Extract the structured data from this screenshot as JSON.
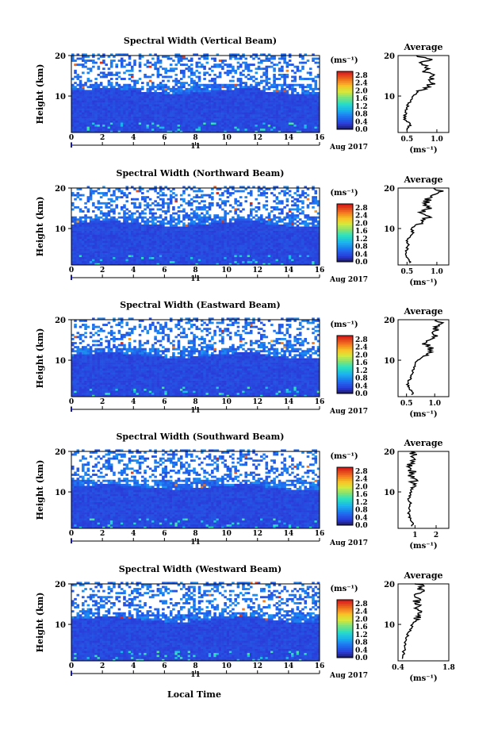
{
  "figure": {
    "xlabel": "Local Time",
    "date_label": "Aug 2017",
    "day_label": "11"
  },
  "chart_data": [
    {
      "type": "heatmap",
      "title": "Spectral Width (Vertical Beam)",
      "ylabel": "Height (km)",
      "xlim": [
        0,
        16
      ],
      "ylim": [
        1,
        20
      ],
      "x_ticks": [
        "0",
        "2",
        "4",
        "6",
        "8",
        "10",
        "12",
        "14",
        "16"
      ],
      "y_ticks": [
        "10",
        "20"
      ],
      "colorbar": {
        "label": "(ms⁻¹)",
        "ticks": [
          "0.0",
          "0.4",
          "0.8",
          "1.2",
          "1.6",
          "2.0",
          "2.4",
          "2.8"
        ],
        "range": [
          0,
          3.0
        ]
      },
      "profile": {
        "title": "Average",
        "xlabel": "(ms⁻¹)",
        "x_ticks": [
          "0.5",
          "1.0"
        ],
        "xlim": [
          0.35,
          1.2
        ],
        "heights": [
          2,
          3,
          4,
          5,
          6,
          7,
          8,
          9,
          10,
          11,
          12,
          13,
          14,
          15,
          16,
          17,
          18,
          19,
          20
        ],
        "values": [
          0.5,
          0.56,
          0.47,
          0.46,
          0.48,
          0.5,
          0.52,
          0.58,
          0.6,
          0.7,
          0.82,
          0.9,
          0.88,
          0.95,
          0.8,
          0.85,
          0.75,
          0.9,
          0.7
        ]
      }
    },
    {
      "type": "heatmap",
      "title": "Spectral Width (Northward Beam)",
      "ylabel": "Height (km)",
      "xlim": [
        0,
        16
      ],
      "ylim": [
        1,
        20
      ],
      "x_ticks": [
        "0",
        "2",
        "4",
        "6",
        "8",
        "10",
        "12",
        "14",
        "16"
      ],
      "y_ticks": [
        "10",
        "20"
      ],
      "colorbar": {
        "label": "(ms⁻¹)",
        "ticks": [
          "0.0",
          "0.4",
          "0.8",
          "1.2",
          "1.6",
          "2.0",
          "2.4",
          "2.8"
        ],
        "range": [
          0,
          3.0
        ]
      },
      "profile": {
        "title": "Average",
        "xlabel": "(ms⁻¹)",
        "x_ticks": [
          "0.5",
          "1.0"
        ],
        "xlim": [
          0.35,
          1.2
        ],
        "heights": [
          2,
          3,
          4,
          5,
          6,
          7,
          8,
          9,
          10,
          11,
          12,
          13,
          14,
          15,
          16,
          17,
          18,
          19,
          20
        ],
        "values": [
          0.55,
          0.5,
          0.48,
          0.5,
          0.52,
          0.5,
          0.55,
          0.6,
          0.58,
          0.65,
          0.8,
          0.85,
          0.75,
          0.9,
          0.8,
          0.85,
          0.9,
          1.1,
          0.95
        ]
      }
    },
    {
      "type": "heatmap",
      "title": "Spectral Width (Eastward Beam)",
      "ylabel": "Height (km)",
      "xlim": [
        0,
        16
      ],
      "ylim": [
        1,
        20
      ],
      "x_ticks": [
        "0",
        "2",
        "4",
        "6",
        "8",
        "10",
        "12",
        "14",
        "16"
      ],
      "y_ticks": [
        "10",
        "20"
      ],
      "colorbar": {
        "label": "(ms⁻¹)",
        "ticks": [
          "0.0",
          "0.4",
          "0.8",
          "1.2",
          "1.6",
          "2.0",
          "2.4",
          "2.8"
        ],
        "range": [
          0,
          3.0
        ]
      },
      "profile": {
        "title": "Average",
        "xlabel": "(ms⁻¹)",
        "x_ticks": [
          "0.5",
          "1.0"
        ],
        "xlim": [
          0.35,
          1.25
        ],
        "heights": [
          2,
          3,
          4,
          5,
          6,
          7,
          8,
          9,
          10,
          11,
          12,
          13,
          14,
          15,
          16,
          17,
          18,
          19,
          20
        ],
        "values": [
          0.6,
          0.55,
          0.52,
          0.55,
          0.58,
          0.6,
          0.62,
          0.65,
          0.7,
          0.8,
          0.9,
          0.95,
          0.85,
          0.9,
          1.0,
          0.95,
          1.05,
          1.1,
          1.0
        ]
      }
    },
    {
      "type": "heatmap",
      "title": "Spectral Width (Southward Beam)",
      "ylabel": "Height (km)",
      "xlim": [
        0,
        16
      ],
      "ylim": [
        1,
        20
      ],
      "x_ticks": [
        "0",
        "2",
        "4",
        "6",
        "8",
        "10",
        "12",
        "14",
        "16"
      ],
      "y_ticks": [
        "10",
        "20"
      ],
      "colorbar": {
        "label": "(ms⁻¹)",
        "ticks": [
          "0.0",
          "0.4",
          "0.8",
          "1.2",
          "1.6",
          "2.0",
          "2.4",
          "2.8"
        ],
        "range": [
          0,
          3.0
        ]
      },
      "profile": {
        "title": "Average",
        "xlabel": "(ms⁻¹)",
        "x_ticks": [
          "1",
          "2"
        ],
        "xlim": [
          0.2,
          2.6
        ],
        "heights": [
          2,
          3,
          4,
          5,
          6,
          7,
          8,
          9,
          10,
          11,
          12,
          13,
          14,
          15,
          16,
          17,
          18,
          19,
          20
        ],
        "values": [
          0.9,
          0.8,
          0.75,
          0.7,
          0.75,
          0.8,
          0.7,
          0.75,
          0.8,
          0.85,
          0.9,
          0.95,
          0.85,
          0.9,
          0.8,
          0.85,
          0.9,
          0.95,
          0.9
        ]
      }
    },
    {
      "type": "heatmap",
      "title": "Spectral Width (Westward Beam)",
      "ylabel": "Height (km)",
      "xlim": [
        0,
        16
      ],
      "ylim": [
        1,
        20
      ],
      "x_ticks": [
        "0",
        "2",
        "4",
        "6",
        "8",
        "10",
        "12",
        "14",
        "16"
      ],
      "y_ticks": [
        "10",
        "20"
      ],
      "colorbar": {
        "label": "(ms⁻¹)",
        "ticks": [
          "0.0",
          "0.4",
          "0.8",
          "1.2",
          "1.6",
          "2.0",
          "2.4",
          "2.8"
        ],
        "range": [
          0,
          3.0
        ]
      },
      "profile": {
        "title": "Average",
        "xlabel": "(ms⁻¹)",
        "x_ticks": [
          "0.4",
          "1.8"
        ],
        "xlim": [
          0.4,
          1.8
        ],
        "heights": [
          2,
          3,
          4,
          5,
          6,
          7,
          8,
          9,
          10,
          11,
          12,
          13,
          14,
          15,
          16,
          17,
          18,
          19,
          20
        ],
        "values": [
          0.55,
          0.55,
          0.58,
          0.6,
          0.62,
          0.65,
          0.7,
          0.75,
          0.8,
          0.9,
          1.0,
          1.05,
          0.95,
          1.0,
          0.9,
          0.95,
          1.0,
          1.05,
          0.95
        ]
      }
    }
  ]
}
